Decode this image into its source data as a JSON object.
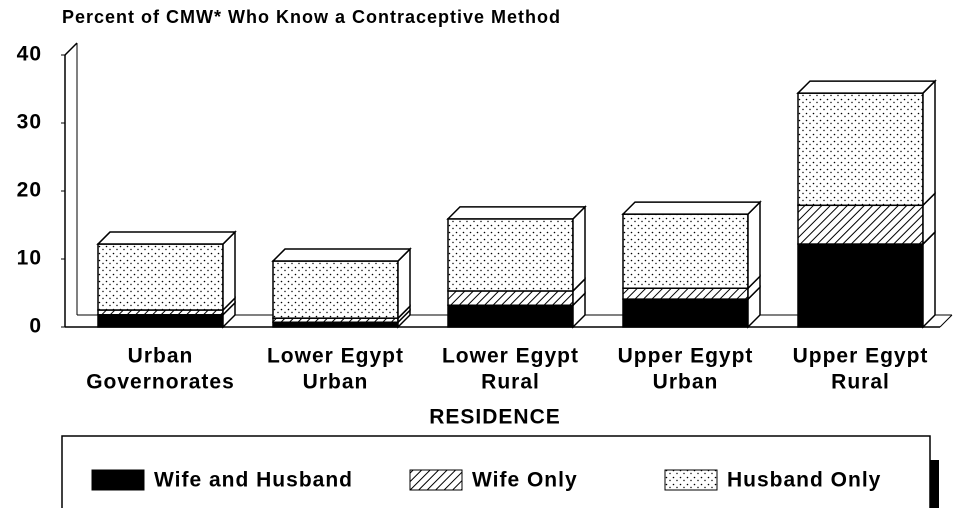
{
  "chart_data": {
    "type": "stacked-bar-3d",
    "title": "Percent of CMW* Who Know a Contraceptive Method",
    "x_label": "RESIDENCE",
    "categories": [
      [
        "Urban",
        "Governorates"
      ],
      [
        "Lower Egypt",
        "Urban"
      ],
      [
        "Lower Egypt",
        "Rural"
      ],
      [
        "Upper Egypt",
        "Urban"
      ],
      [
        "Upper Egypt",
        "Rural"
      ]
    ],
    "series": [
      {
        "name": "Wife and Husband",
        "color": "#000000",
        "pattern": "solid",
        "values": [
          1.8,
          0.7,
          3.2,
          4.1,
          12.2
        ]
      },
      {
        "name": "Wife Only",
        "color": "#000000",
        "pattern": "hatch",
        "values": [
          0.7,
          0.6,
          2.1,
          1.6,
          5.7
        ]
      },
      {
        "name": "Husband Only",
        "color": "#000000",
        "pattern": "dots",
        "values": [
          9.7,
          8.4,
          10.6,
          10.9,
          16.5
        ]
      }
    ],
    "ylim": [
      0,
      40
    ],
    "yticks": [
      0,
      10,
      20,
      30,
      40
    ]
  }
}
